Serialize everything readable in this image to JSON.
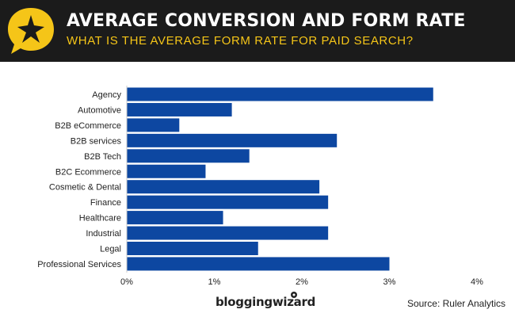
{
  "header": {
    "title": "AVERAGE CONVERSION AND FORM RATE",
    "subtitle": "WHAT IS THE AVERAGE FORM RATE FOR PAID SEARCH?"
  },
  "footer": {
    "brand": "bloggingwizard",
    "source": "Source: Ruler Analytics"
  },
  "colors": {
    "header_bg": "#1b1b1b",
    "accent": "#f5c518",
    "bar": "#0d47a1"
  },
  "icons": {
    "logo": "star-speech-bubble-icon",
    "brand_mark": "wizard-dot-icon"
  },
  "chart_data": {
    "type": "bar",
    "orientation": "horizontal",
    "categories": [
      "Agency",
      "Automotive",
      "B2B eCommerce",
      "B2B services",
      "B2B Tech",
      "B2C Ecommerce",
      "Cosmetic & Dental",
      "Finance",
      "Healthcare",
      "Industrial",
      "Legal",
      "Professional Services"
    ],
    "values": [
      3.5,
      1.2,
      0.6,
      2.4,
      1.4,
      0.9,
      2.2,
      2.3,
      1.1,
      2.3,
      1.5,
      3.0
    ],
    "xlim": [
      0,
      4
    ],
    "x_ticks": [
      0,
      1,
      2,
      3,
      4
    ],
    "x_tick_labels": [
      "0%",
      "1%",
      "2%",
      "3%",
      "4%"
    ],
    "grid": false,
    "legend": "none"
  }
}
